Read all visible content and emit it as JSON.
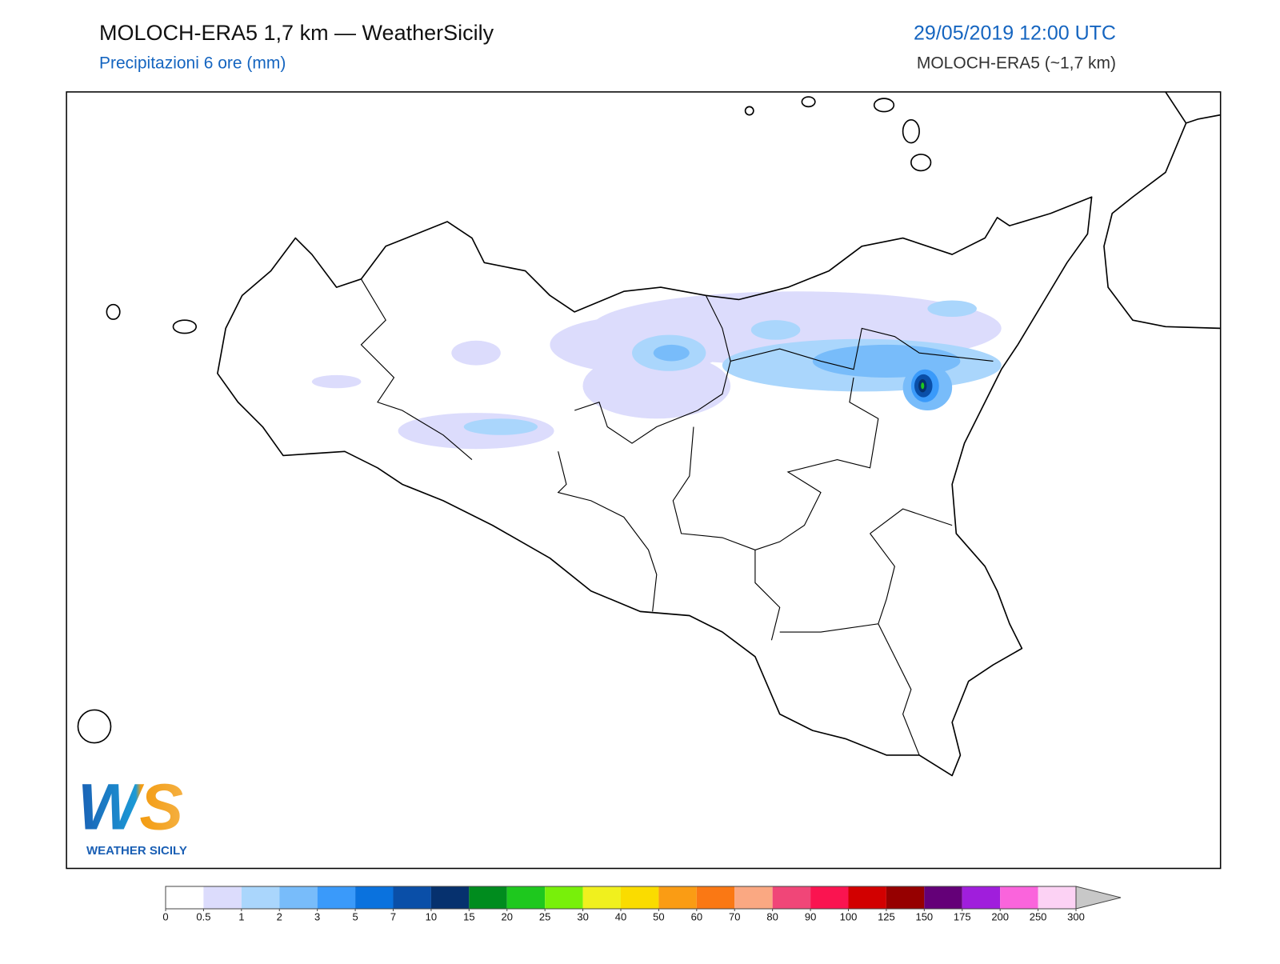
{
  "header": {
    "title": "MOLOCH-ERA5 1,7 km — WeatherSicily",
    "subtitle": "Precipitazioni 6 ore (mm)",
    "datetime": "29/05/2019 12:00 UTC",
    "model": "MOLOCH-ERA5 (~1,7 km)"
  },
  "logo": {
    "mark": "WS",
    "name": "WEATHER SICILY"
  },
  "colorbar": {
    "levels": [
      0,
      0.5,
      1,
      2,
      3,
      5,
      7,
      10,
      15,
      20,
      25,
      30,
      40,
      50,
      60,
      70,
      80,
      90,
      100,
      125,
      150,
      175,
      200,
      250,
      300
    ],
    "colors": [
      "#ffffff",
      "#dcdcfc",
      "#aad6fc",
      "#78bcfa",
      "#3a9afa",
      "#0a72de",
      "#0a4fa8",
      "#06316e",
      "#008c1e",
      "#1ec81e",
      "#78f00a",
      "#f0f01e",
      "#fadc00",
      "#fa9c14",
      "#fa7814",
      "#faa882",
      "#f04678",
      "#fa1450",
      "#d20000",
      "#960000",
      "#640078",
      "#a01edc",
      "#fa64dc",
      "#fcd2f4"
    ],
    "extend_color": "#c8c8c8"
  }
}
